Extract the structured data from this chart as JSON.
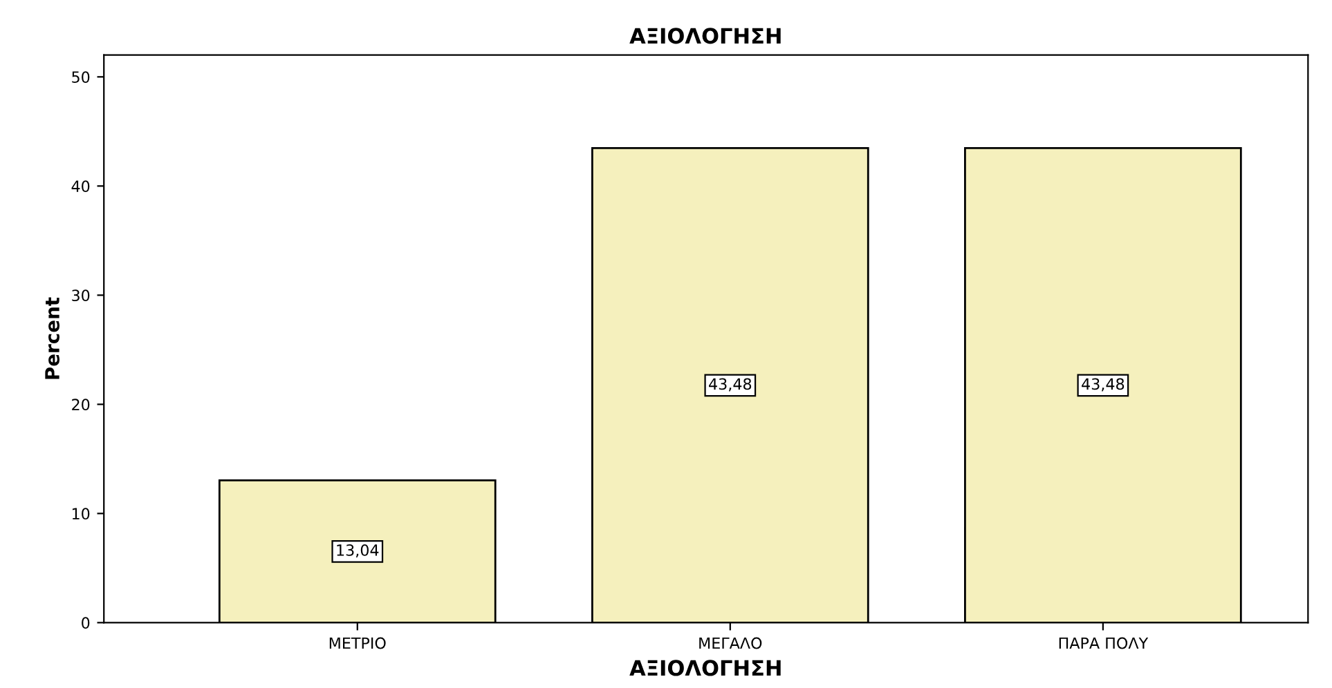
{
  "chart_data": {
    "type": "bar",
    "title": "ΑΞΙΟΛΟΓΗΣΗ",
    "xlabel": "ΑΞΙΟΛΟΓΗΣΗ",
    "ylabel": "Percent",
    "categories": [
      "ΜΕΤΡΙΟ",
      "ΜΕΓΑΛΟ",
      "ΠΑΡΑ ΠΟΛΥ"
    ],
    "values": [
      13.04,
      43.48,
      43.48
    ],
    "value_labels": [
      "13,04",
      "43,48",
      "43,48"
    ],
    "color": "#f5f0bd",
    "ylim": [
      0,
      52
    ],
    "yticks": [
      0,
      10,
      20,
      30,
      40,
      50
    ],
    "grid": false
  }
}
